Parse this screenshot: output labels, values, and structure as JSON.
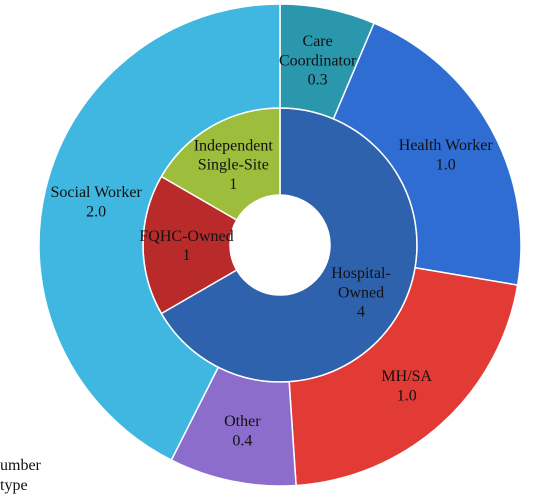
{
  "chart_data": {
    "type": "nested-donut",
    "rings": [
      {
        "categories": [
          "Hospital-\nOwned",
          "FQHC-Owned",
          "Independent\nSingle-Site"
        ],
        "values": [
          4,
          1,
          1
        ],
        "colors": [
          "#2f62ad",
          "#b92b2b",
          "#9dbd3c"
        ]
      },
      {
        "categories": [
          "Care\nCoordinator",
          "Health Worker",
          "MH/SA",
          "Other",
          "Social Worker"
        ],
        "values": [
          0.3,
          1.0,
          1.0,
          0.4,
          2.0
        ],
        "value_labels": [
          "0.3",
          "1.0",
          "1.0",
          "0.4",
          "2.0"
        ],
        "colors": [
          "#2a97ad",
          "#2f6dd3",
          "#e23b36",
          "#8c6dcc",
          "#3fb7e1"
        ]
      }
    ],
    "annotations": [
      "umber",
      "type"
    ]
  }
}
